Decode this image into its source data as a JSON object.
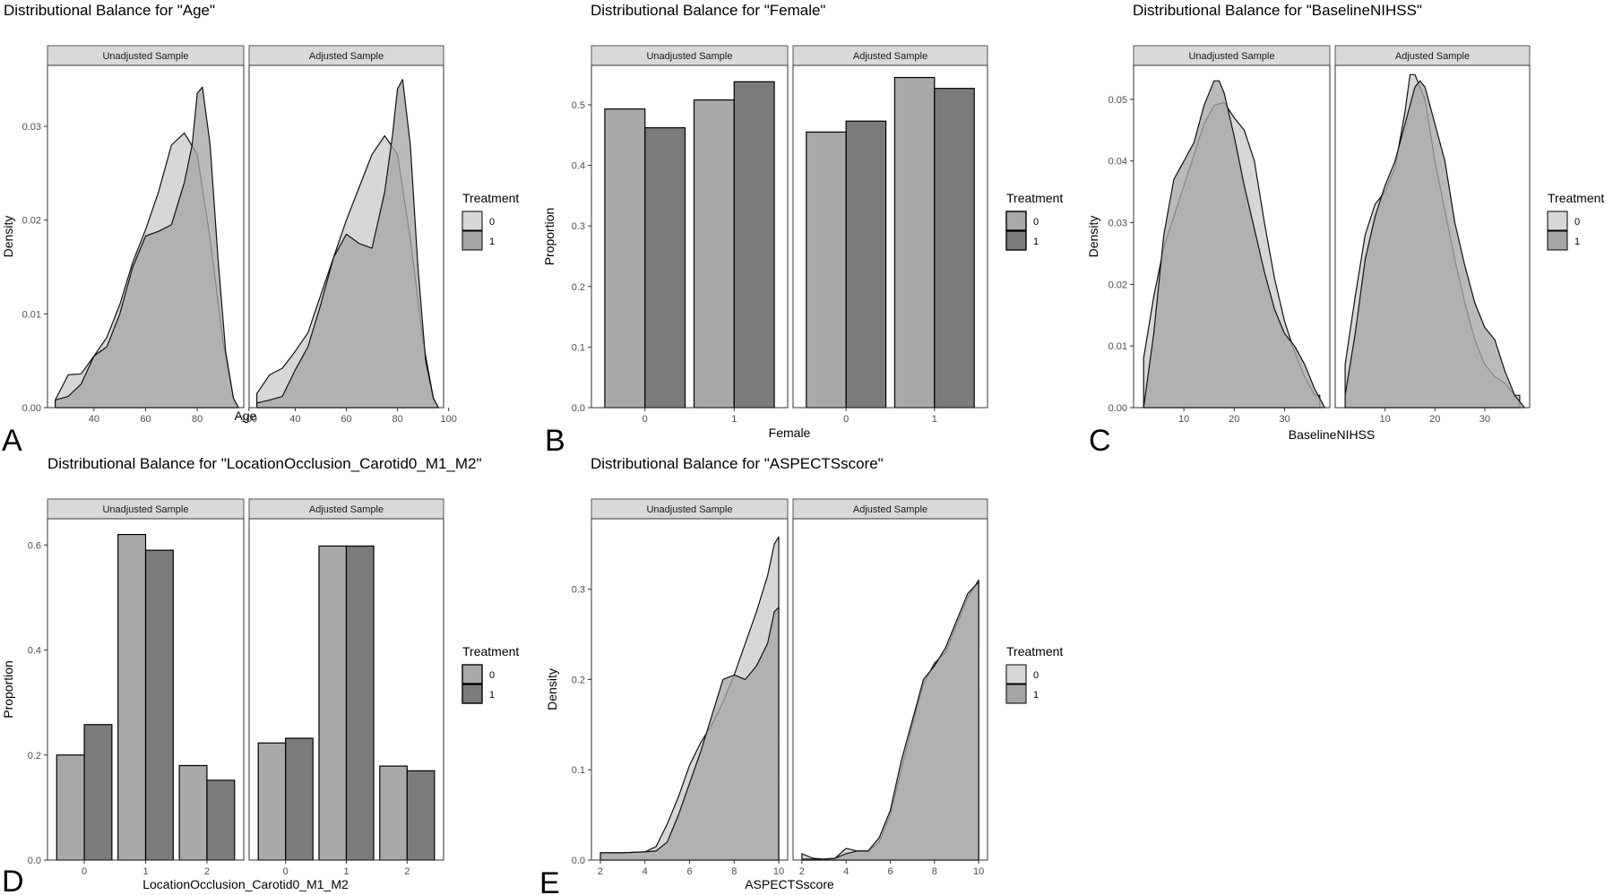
{
  "colors": {
    "strip_bg": "#d9d9d9",
    "fill_group0": "#d7d7d7",
    "fill_group1": "#a6a6a6",
    "bar_group0": "#a9a9a9",
    "bar_group1": "#7b7b7b",
    "outline": "#000000"
  },
  "chart_data": [
    {
      "id": "A",
      "letter": "A",
      "type": "area",
      "title": "Distributional Balance for \"Age\"",
      "facets": [
        "Unadjusted Sample",
        "Adjusted Sample"
      ],
      "xlabel": "Age",
      "ylabel": "Density",
      "xlim": [
        22,
        98
      ],
      "ylim": [
        0,
        0.0365
      ],
      "xticks": [
        40,
        60,
        80,
        100
      ],
      "yticks": [
        0.0,
        0.01,
        0.02,
        0.03
      ],
      "ytick_labels": [
        "0.00",
        "0.01",
        "0.02",
        "0.03"
      ],
      "legend": {
        "title": "Treatment",
        "entries": [
          "0",
          "1"
        ]
      },
      "panels": [
        {
          "series": [
            {
              "name": "0",
              "x": [
                25,
                30,
                35,
                40,
                45,
                50,
                55,
                60,
                65,
                70,
                75,
                80,
                85,
                90,
                94,
                96
              ],
              "values": [
                0.0008,
                0.0035,
                0.0036,
                0.0055,
                0.0075,
                0.011,
                0.0155,
                0.019,
                0.023,
                0.028,
                0.0293,
                0.027,
                0.018,
                0.007,
                0.001,
                0
              ]
            },
            {
              "name": "1",
              "x": [
                25,
                30,
                35,
                40,
                45,
                50,
                55,
                60,
                65,
                70,
                75,
                78,
                80,
                82,
                85,
                88,
                91,
                94,
                96
              ],
              "values": [
                0.0008,
                0.0012,
                0.0025,
                0.0055,
                0.0065,
                0.01,
                0.015,
                0.0183,
                0.0188,
                0.0195,
                0.024,
                0.028,
                0.0335,
                0.0342,
                0.028,
                0.016,
                0.006,
                0.001,
                0
              ]
            }
          ]
        },
        {
          "series": [
            {
              "name": "0",
              "x": [
                25,
                30,
                35,
                40,
                45,
                50,
                55,
                60,
                65,
                70,
                75,
                80,
                85,
                90,
                94,
                96
              ],
              "values": [
                0.0015,
                0.0035,
                0.0042,
                0.006,
                0.008,
                0.012,
                0.016,
                0.02,
                0.0235,
                0.027,
                0.029,
                0.027,
                0.018,
                0.007,
                0.001,
                0
              ]
            },
            {
              "name": "1",
              "x": [
                25,
                30,
                35,
                40,
                45,
                50,
                55,
                60,
                65,
                70,
                75,
                78,
                80,
                82,
                85,
                88,
                91,
                94,
                96
              ],
              "values": [
                0.0005,
                0.0008,
                0.0012,
                0.004,
                0.0065,
                0.011,
                0.016,
                0.0185,
                0.0175,
                0.017,
                0.023,
                0.029,
                0.034,
                0.035,
                0.028,
                0.015,
                0.005,
                0.001,
                0
              ]
            }
          ]
        }
      ]
    },
    {
      "id": "B",
      "letter": "B",
      "type": "bar",
      "title": "Distributional Balance for \"Female\"",
      "facets": [
        "Unadjusted Sample",
        "Adjusted Sample"
      ],
      "xlabel": "Female",
      "ylabel": "Proportion",
      "categories": [
        "0",
        "1"
      ],
      "ylim": [
        0,
        0.565
      ],
      "yticks": [
        0.0,
        0.1,
        0.2,
        0.3,
        0.4,
        0.5
      ],
      "ytick_labels": [
        "0.0",
        "0.1",
        "0.2",
        "0.3",
        "0.4",
        "0.5"
      ],
      "legend": {
        "title": "Treatment",
        "entries": [
          "0",
          "1"
        ]
      },
      "panels": [
        {
          "series": [
            {
              "name": "0",
              "values": [
                0.493,
                0.508
              ]
            },
            {
              "name": "1",
              "values": [
                0.462,
                0.538
              ]
            }
          ]
        },
        {
          "series": [
            {
              "name": "0",
              "values": [
                0.455,
                0.545
              ]
            },
            {
              "name": "1",
              "values": [
                0.473,
                0.527
              ]
            }
          ]
        }
      ]
    },
    {
      "id": "C",
      "letter": "C",
      "type": "area",
      "title": "Distributional Balance for \"BaselineNIHSS\"",
      "facets": [
        "Unadjusted Sample",
        "Adjusted Sample"
      ],
      "xlabel": "BaselineNIHSS",
      "ylabel": "Density",
      "xlim": [
        0,
        39
      ],
      "ylim": [
        0,
        0.0555
      ],
      "xticks": [
        10,
        20,
        30
      ],
      "yticks": [
        0.0,
        0.01,
        0.02,
        0.03,
        0.04,
        0.05
      ],
      "ytick_labels": [
        "0.00",
        "0.01",
        "0.02",
        "0.03",
        "0.04",
        "0.05"
      ],
      "legend": {
        "title": "Treatment",
        "entries": [
          "0",
          "1"
        ]
      },
      "panels": [
        {
          "series": [
            {
              "name": "0",
              "x": [
                2,
                4,
                6,
                8,
                10,
                12,
                14,
                16,
                18,
                20,
                22,
                24,
                26,
                28,
                30,
                32,
                34,
                36,
                37
              ],
              "values": [
                0.008,
                0.018,
                0.026,
                0.031,
                0.036,
                0.041,
                0.046,
                0.049,
                0.0495,
                0.047,
                0.045,
                0.04,
                0.03,
                0.021,
                0.014,
                0.009,
                0.005,
                0.002,
                0.002
              ]
            },
            {
              "name": "1",
              "x": [
                2,
                4,
                6,
                8,
                10,
                12,
                14,
                16,
                17,
                18,
                20,
                22,
                24,
                26,
                28,
                30,
                32,
                34,
                36,
                38
              ],
              "values": [
                0,
                0.012,
                0.028,
                0.037,
                0.04,
                0.043,
                0.049,
                0.053,
                0.053,
                0.051,
                0.044,
                0.036,
                0.029,
                0.022,
                0.016,
                0.012,
                0.01,
                0.007,
                0.003,
                0
              ]
            }
          ]
        },
        {
          "series": [
            {
              "name": "0",
              "x": [
                2,
                4,
                6,
                8,
                10,
                12,
                14,
                15,
                16,
                18,
                20,
                22,
                24,
                26,
                28,
                30,
                32,
                34,
                36,
                37
              ],
              "values": [
                0.007,
                0.018,
                0.028,
                0.033,
                0.035,
                0.039,
                0.048,
                0.054,
                0.054,
                0.05,
                0.04,
                0.032,
                0.024,
                0.017,
                0.011,
                0.007,
                0.005,
                0.004,
                0.002,
                0.002
              ]
            },
            {
              "name": "1",
              "x": [
                2,
                4,
                6,
                8,
                10,
                12,
                14,
                16,
                17,
                18,
                20,
                22,
                24,
                26,
                28,
                30,
                32,
                34,
                36,
                38
              ],
              "values": [
                0.002,
                0.012,
                0.024,
                0.031,
                0.036,
                0.04,
                0.046,
                0.052,
                0.053,
                0.052,
                0.046,
                0.04,
                0.03,
                0.023,
                0.017,
                0.013,
                0.011,
                0.006,
                0.002,
                0
              ]
            }
          ]
        }
      ]
    },
    {
      "id": "D",
      "letter": "D",
      "type": "bar",
      "title": "Distributional Balance for \"LocationOcclusion_Carotid0_M1_M2\"",
      "facets": [
        "Unadjusted Sample",
        "Adjusted Sample"
      ],
      "xlabel": "LocationOcclusion_Carotid0_M1_M2",
      "ylabel": "Proportion",
      "categories": [
        "0",
        "1",
        "2"
      ],
      "ylim": [
        0,
        0.65
      ],
      "yticks": [
        0.0,
        0.2,
        0.4,
        0.6
      ],
      "ytick_labels": [
        "0.0",
        "0.2",
        "0.4",
        "0.6"
      ],
      "legend": {
        "title": "Treatment",
        "entries": [
          "0",
          "1"
        ]
      },
      "panels": [
        {
          "series": [
            {
              "name": "0",
              "values": [
                0.2,
                0.62,
                0.18
              ]
            },
            {
              "name": "1",
              "values": [
                0.258,
                0.59,
                0.152
              ]
            }
          ]
        },
        {
          "series": [
            {
              "name": "0",
              "values": [
                0.223,
                0.598,
                0.179
              ]
            },
            {
              "name": "1",
              "values": [
                0.232,
                0.598,
                0.17
              ]
            }
          ]
        }
      ]
    },
    {
      "id": "E",
      "letter": "E",
      "type": "area",
      "title": "Distributional Balance for \"ASPECTSscore\"",
      "facets": [
        "Unadjusted Sample",
        "Adjusted Sample"
      ],
      "xlabel": "ASPECTSscore",
      "ylabel": "Density",
      "xlim": [
        1.6,
        10.4
      ],
      "ylim": [
        0,
        0.378
      ],
      "xticks": [
        2,
        4,
        6,
        8,
        10
      ],
      "yticks": [
        0.0,
        0.1,
        0.2,
        0.3
      ],
      "ytick_labels": [
        "0.0",
        "0.1",
        "0.2",
        "0.3"
      ],
      "legend": {
        "title": "Treatment",
        "entries": [
          "0",
          "1"
        ]
      },
      "panels": [
        {
          "series": [
            {
              "name": "0",
              "x": [
                2,
                3,
                4,
                4.5,
                5,
                5.5,
                6,
                6.5,
                7,
                7.5,
                8,
                8.5,
                9,
                9.5,
                9.8,
                10
              ],
              "values": [
                0.008,
                0.008,
                0.009,
                0.015,
                0.04,
                0.07,
                0.105,
                0.13,
                0.15,
                0.175,
                0.205,
                0.24,
                0.275,
                0.315,
                0.35,
                0.358
              ]
            },
            {
              "name": "1",
              "x": [
                2,
                3,
                4,
                4.5,
                5,
                5.5,
                6,
                6.5,
                7,
                7.5,
                8,
                8.5,
                9,
                9.5,
                9.8,
                10
              ],
              "values": [
                0.008,
                0.008,
                0.009,
                0.01,
                0.02,
                0.05,
                0.085,
                0.12,
                0.16,
                0.2,
                0.205,
                0.2,
                0.215,
                0.24,
                0.275,
                0.28
              ]
            }
          ]
        },
        {
          "series": [
            {
              "name": "0",
              "x": [
                2,
                2.5,
                3,
                3.5,
                4,
                4.5,
                5,
                5.5,
                6,
                6.5,
                7,
                7.5,
                8,
                8.5,
                9,
                9.5,
                10
              ],
              "values": [
                0.007,
                0.002,
                0.001,
                0.002,
                0.013,
                0.01,
                0.01,
                0.02,
                0.05,
                0.1,
                0.15,
                0.195,
                0.218,
                0.23,
                0.26,
                0.29,
                0.31
              ]
            },
            {
              "name": "1",
              "x": [
                2,
                2.5,
                3,
                3.5,
                4,
                4.5,
                5,
                5.5,
                6,
                6.5,
                7,
                7.5,
                8,
                8.5,
                9,
                9.5,
                10
              ],
              "values": [
                0.001,
                0.001,
                0.001,
                0.002,
                0.007,
                0.01,
                0.01,
                0.025,
                0.055,
                0.11,
                0.155,
                0.2,
                0.215,
                0.235,
                0.265,
                0.295,
                0.308
              ]
            }
          ]
        }
      ]
    }
  ]
}
